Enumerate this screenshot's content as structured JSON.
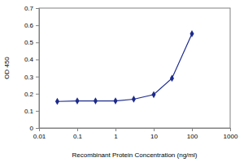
{
  "chart_data": {
    "type": "line",
    "x_label": "Recombinant Protein Concentration (ng/ml)",
    "y_label": "OD 450",
    "x": [
      0.03,
      0.1,
      0.3,
      1,
      3,
      10,
      30,
      100
    ],
    "values": [
      0.155,
      0.158,
      0.158,
      0.158,
      0.168,
      0.195,
      0.29,
      0.55
    ],
    "color": "#1c2a8c",
    "marker": "diamond",
    "log": "x",
    "xlim": [
      0.01,
      1000
    ],
    "xticks": [
      0.01,
      0.1,
      1,
      10,
      100,
      1000
    ],
    "ylim": [
      0,
      0.7
    ],
    "yticks": [
      0,
      0.1,
      0.2,
      0.3,
      0.4,
      0.5,
      0.6,
      0.7
    ],
    "grid": false
  }
}
